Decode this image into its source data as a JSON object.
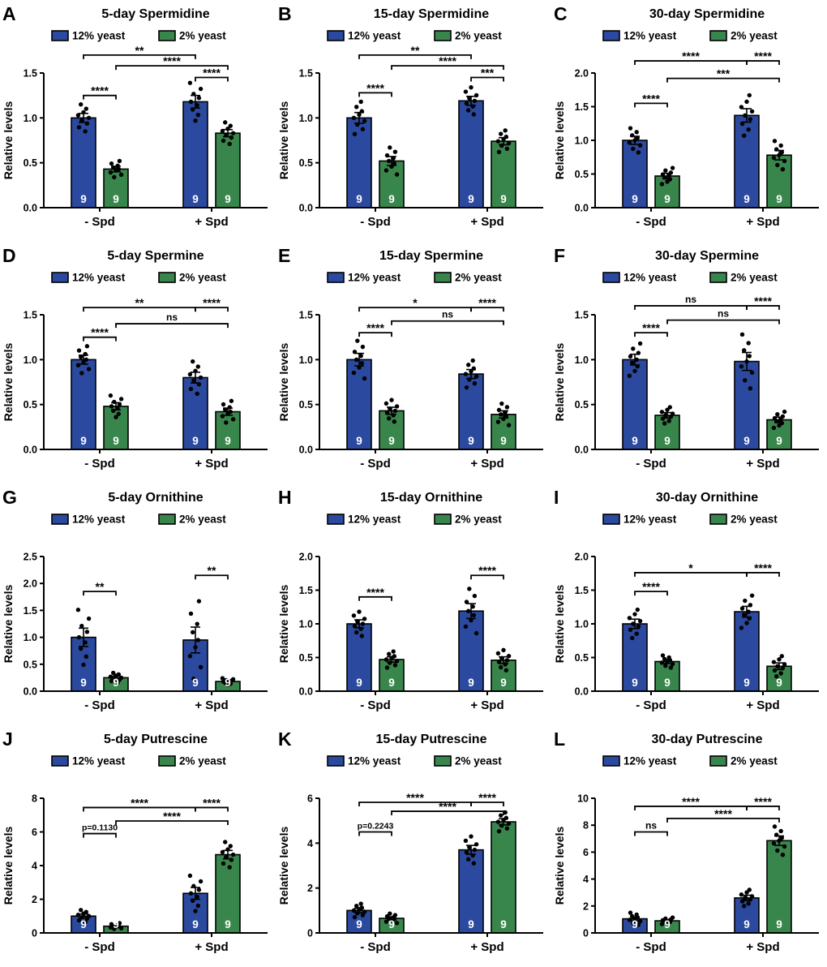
{
  "figure": {
    "ylabel": "Relative levels",
    "categories": [
      "- Spd",
      "+ Spd"
    ],
    "legend": [
      {
        "label": "12% yeast",
        "color": "#2b4a9f"
      },
      {
        "label": "2% yeast",
        "color": "#39864c"
      }
    ],
    "n_per_bar": "9"
  },
  "colors": {
    "blue": "#2b4a9f",
    "green": "#39864c",
    "axis": "#000000",
    "dots": "#000000",
    "n_text": "#ffffff",
    "background": "#ffffff"
  },
  "chart_data": [
    {
      "type": "bar",
      "letter": "A",
      "title": "5-day Spermidine",
      "ylim": [
        0,
        1.5
      ],
      "yticks": [
        "0.0",
        "0.5",
        "1.0",
        "1.5"
      ],
      "categories": [
        "- Spd",
        "+ Spd"
      ],
      "series": [
        {
          "name": "12% yeast",
          "values": [
            1.0,
            1.18
          ],
          "sem": [
            0.05,
            0.07
          ]
        },
        {
          "name": "2% yeast",
          "values": [
            0.43,
            0.83
          ],
          "sem": [
            0.03,
            0.04
          ]
        }
      ],
      "n": [
        "9",
        "9",
        "9",
        "9"
      ],
      "brackets": [
        {
          "from": 0,
          "to": 1,
          "label": "****",
          "h": 1.25
        },
        {
          "from": 2,
          "to": 3,
          "label": "****",
          "h": 1.45
        },
        {
          "from": 1,
          "to": 3,
          "label": "****",
          "h": 1.58
        },
        {
          "from": 0,
          "to": 2,
          "label": "**",
          "h": 1.7
        }
      ]
    },
    {
      "type": "bar",
      "letter": "B",
      "title": "15-day Spermidine",
      "ylim": [
        0,
        1.5
      ],
      "yticks": [
        "0.0",
        "0.5",
        "1.0",
        "1.5"
      ],
      "categories": [
        "- Spd",
        "+ Spd"
      ],
      "series": [
        {
          "name": "12% yeast",
          "values": [
            1.0,
            1.19
          ],
          "sem": [
            0.06,
            0.05
          ]
        },
        {
          "name": "2% yeast",
          "values": [
            0.52,
            0.74
          ],
          "sem": [
            0.05,
            0.04
          ]
        }
      ],
      "n": [
        "9",
        "9",
        "9",
        "9"
      ],
      "brackets": [
        {
          "from": 0,
          "to": 1,
          "label": "****",
          "h": 1.28
        },
        {
          "from": 2,
          "to": 3,
          "label": "***",
          "h": 1.45
        },
        {
          "from": 1,
          "to": 3,
          "label": "****",
          "h": 1.58
        },
        {
          "from": 0,
          "to": 2,
          "label": "**",
          "h": 1.7
        }
      ]
    },
    {
      "type": "bar",
      "letter": "C",
      "title": "30-day Spermidine",
      "ylim": [
        0,
        2.0
      ],
      "yticks": [
        "0.0",
        "0.5",
        "1.0",
        "1.5",
        "2.0"
      ],
      "categories": [
        "- Spd",
        "+ Spd"
      ],
      "series": [
        {
          "name": "12% yeast",
          "values": [
            1.0,
            1.37
          ],
          "sem": [
            0.06,
            0.1
          ]
        },
        {
          "name": "2% yeast",
          "values": [
            0.47,
            0.78
          ],
          "sem": [
            0.04,
            0.07
          ]
        }
      ],
      "n": [
        "9",
        "9",
        "9",
        "9"
      ],
      "brackets": [
        {
          "from": 0,
          "to": 1,
          "label": "****",
          "h": 1.55
        },
        {
          "from": 1,
          "to": 3,
          "label": "***",
          "h": 1.92
        },
        {
          "from": 0,
          "to": 2,
          "label": "****",
          "h": 2.18
        },
        {
          "from": 2,
          "to": 3,
          "label": "****",
          "h": 2.18
        }
      ]
    },
    {
      "type": "bar",
      "letter": "D",
      "title": "5-day Spermine",
      "ylim": [
        0,
        1.5
      ],
      "yticks": [
        "0.0",
        "0.5",
        "1.0",
        "1.5"
      ],
      "categories": [
        "- Spd",
        "+ Spd"
      ],
      "series": [
        {
          "name": "12% yeast",
          "values": [
            1.0,
            0.8
          ],
          "sem": [
            0.05,
            0.06
          ]
        },
        {
          "name": "2% yeast",
          "values": [
            0.48,
            0.42
          ],
          "sem": [
            0.04,
            0.04
          ]
        }
      ],
      "n": [
        "9",
        "9",
        "9",
        "9"
      ],
      "brackets": [
        {
          "from": 0,
          "to": 1,
          "label": "****",
          "h": 1.25
        },
        {
          "from": 1,
          "to": 3,
          "label": "ns",
          "h": 1.4
        },
        {
          "from": 0,
          "to": 2,
          "label": "**",
          "h": 1.58
        },
        {
          "from": 2,
          "to": 3,
          "label": "****",
          "h": 1.58
        }
      ]
    },
    {
      "type": "bar",
      "letter": "E",
      "title": "15-day Spermine",
      "ylim": [
        0,
        1.5
      ],
      "yticks": [
        "0.0",
        "0.5",
        "1.0",
        "1.5"
      ],
      "categories": [
        "- Spd",
        "+ Spd"
      ],
      "series": [
        {
          "name": "12% yeast",
          "values": [
            1.0,
            0.84
          ],
          "sem": [
            0.07,
            0.05
          ]
        },
        {
          "name": "2% yeast",
          "values": [
            0.43,
            0.39
          ],
          "sem": [
            0.04,
            0.04
          ]
        }
      ],
      "n": [
        "9",
        "9",
        "9",
        "9"
      ],
      "brackets": [
        {
          "from": 0,
          "to": 1,
          "label": "****",
          "h": 1.3
        },
        {
          "from": 1,
          "to": 3,
          "label": "ns",
          "h": 1.43
        },
        {
          "from": 0,
          "to": 2,
          "label": "*",
          "h": 1.58
        },
        {
          "from": 2,
          "to": 3,
          "label": "****",
          "h": 1.58
        }
      ]
    },
    {
      "type": "bar",
      "letter": "F",
      "title": "30-day Spermine",
      "ylim": [
        0,
        1.5
      ],
      "yticks": [
        "0.0",
        "0.5",
        "1.0",
        "1.5"
      ],
      "categories": [
        "- Spd",
        "+ Spd"
      ],
      "series": [
        {
          "name": "12% yeast",
          "values": [
            1.0,
            0.98
          ],
          "sem": [
            0.06,
            0.1
          ]
        },
        {
          "name": "2% yeast",
          "values": [
            0.38,
            0.33
          ],
          "sem": [
            0.03,
            0.03
          ]
        }
      ],
      "n": [
        "9",
        "9",
        "9",
        "9"
      ],
      "brackets": [
        {
          "from": 0,
          "to": 1,
          "label": "****",
          "h": 1.3
        },
        {
          "from": 1,
          "to": 3,
          "label": "ns",
          "h": 1.44
        },
        {
          "from": 0,
          "to": 2,
          "label": "ns",
          "h": 1.6
        },
        {
          "from": 2,
          "to": 3,
          "label": "****",
          "h": 1.6
        }
      ]
    },
    {
      "type": "bar",
      "letter": "G",
      "title": "5-day Ornithine",
      "ylim": [
        0,
        2.5
      ],
      "yticks": [
        "0.0",
        "0.5",
        "1.0",
        "1.5",
        "2.0",
        "2.5"
      ],
      "categories": [
        "- Spd",
        "+ Spd"
      ],
      "series": [
        {
          "name": "12% yeast",
          "values": [
            1.0,
            0.95
          ],
          "sem": [
            0.17,
            0.24
          ]
        },
        {
          "name": "2% yeast",
          "values": [
            0.25,
            0.18
          ],
          "sem": [
            0.03,
            0.02
          ]
        }
      ],
      "n": [
        "9",
        "9",
        "9",
        "9"
      ],
      "brackets": [
        {
          "from": 0,
          "to": 1,
          "label": "**",
          "h": 1.85
        },
        {
          "from": 2,
          "to": 3,
          "label": "**",
          "h": 2.15
        }
      ]
    },
    {
      "type": "bar",
      "letter": "H",
      "title": "15-day Ornithine",
      "ylim": [
        0,
        2.0
      ],
      "yticks": [
        "0.0",
        "0.5",
        "1.0",
        "1.5",
        "2.0"
      ],
      "categories": [
        "- Spd",
        "+ Spd"
      ],
      "series": [
        {
          "name": "12% yeast",
          "values": [
            1.0,
            1.19
          ],
          "sem": [
            0.06,
            0.11
          ]
        },
        {
          "name": "2% yeast",
          "values": [
            0.47,
            0.46
          ],
          "sem": [
            0.04,
            0.05
          ]
        }
      ],
      "n": [
        "9",
        "9",
        "9",
        "9"
      ],
      "brackets": [
        {
          "from": 0,
          "to": 1,
          "label": "****",
          "h": 1.4
        },
        {
          "from": 2,
          "to": 3,
          "label": "****",
          "h": 1.72
        }
      ]
    },
    {
      "type": "bar",
      "letter": "I",
      "title": "30-day Ornithine",
      "ylim": [
        0,
        2.0
      ],
      "yticks": [
        "0.0",
        "0.5",
        "1.0",
        "1.5",
        "2.0"
      ],
      "categories": [
        "- Spd",
        "+ Spd"
      ],
      "series": [
        {
          "name": "12% yeast",
          "values": [
            1.0,
            1.18
          ],
          "sem": [
            0.07,
            0.08
          ]
        },
        {
          "name": "2% yeast",
          "values": [
            0.44,
            0.37
          ],
          "sem": [
            0.03,
            0.05
          ]
        }
      ],
      "n": [
        "9",
        "9",
        "9",
        "9"
      ],
      "brackets": [
        {
          "from": 0,
          "to": 1,
          "label": "****",
          "h": 1.48
        },
        {
          "from": 0,
          "to": 2,
          "label": "*",
          "h": 1.76
        },
        {
          "from": 2,
          "to": 3,
          "label": "****",
          "h": 1.76
        }
      ]
    },
    {
      "type": "bar",
      "letter": "J",
      "title": "5-day Putrescine",
      "ylim": [
        0,
        8
      ],
      "yticks": [
        "0",
        "2",
        "4",
        "6",
        "8"
      ],
      "categories": [
        "- Spd",
        "+ Spd"
      ],
      "series": [
        {
          "name": "12% yeast",
          "values": [
            1.0,
            2.35
          ],
          "sem": [
            0.12,
            0.35
          ]
        },
        {
          "name": "2% yeast",
          "values": [
            0.4,
            4.65
          ],
          "sem": [
            0.06,
            0.25
          ]
        }
      ],
      "n": [
        "9",
        "9",
        "9",
        "9"
      ],
      "brackets": [
        {
          "from": 0,
          "to": 1,
          "label": "p=0.1130",
          "h": 5.9
        },
        {
          "from": 1,
          "to": 3,
          "label": "****",
          "h": 6.65
        },
        {
          "from": 0,
          "to": 2,
          "label": "****",
          "h": 7.45
        },
        {
          "from": 2,
          "to": 3,
          "label": "****",
          "h": 7.45
        }
      ]
    },
    {
      "type": "bar",
      "letter": "K",
      "title": "15-day Putrescine",
      "ylim": [
        0,
        6
      ],
      "yticks": [
        "0",
        "2",
        "4",
        "6"
      ],
      "categories": [
        "- Spd",
        "+ Spd"
      ],
      "series": [
        {
          "name": "12% yeast",
          "values": [
            1.0,
            3.7
          ],
          "sem": [
            0.1,
            0.2
          ]
        },
        {
          "name": "2% yeast",
          "values": [
            0.65,
            4.95
          ],
          "sem": [
            0.07,
            0.14
          ]
        }
      ],
      "n": [
        "9",
        "9",
        "9",
        "9"
      ],
      "brackets": [
        {
          "from": 0,
          "to": 1,
          "label": "p=0.2243",
          "h": 4.5
        },
        {
          "from": 1,
          "to": 3,
          "label": "****",
          "h": 5.42
        },
        {
          "from": 0,
          "to": 2,
          "label": "****",
          "h": 5.82
        },
        {
          "from": 2,
          "to": 3,
          "label": "****",
          "h": 5.82
        }
      ]
    },
    {
      "type": "bar",
      "letter": "L",
      "title": "30-day Putrescine",
      "ylim": [
        0,
        10
      ],
      "yticks": [
        "0",
        "2",
        "4",
        "6",
        "8",
        "10"
      ],
      "categories": [
        "- Spd",
        "+ Spd"
      ],
      "series": [
        {
          "name": "12% yeast",
          "values": [
            1.05,
            2.6
          ],
          "sem": [
            0.15,
            0.2
          ]
        },
        {
          "name": "2% yeast",
          "values": [
            0.9,
            6.85
          ],
          "sem": [
            0.08,
            0.35
          ]
        }
      ],
      "n": [
        "9",
        "9",
        "9",
        "9"
      ],
      "brackets": [
        {
          "from": 0,
          "to": 1,
          "label": "ns",
          "h": 7.5
        },
        {
          "from": 1,
          "to": 3,
          "label": "****",
          "h": 8.5
        },
        {
          "from": 0,
          "to": 2,
          "label": "****",
          "h": 9.4
        },
        {
          "from": 2,
          "to": 3,
          "label": "****",
          "h": 9.4
        }
      ]
    }
  ]
}
